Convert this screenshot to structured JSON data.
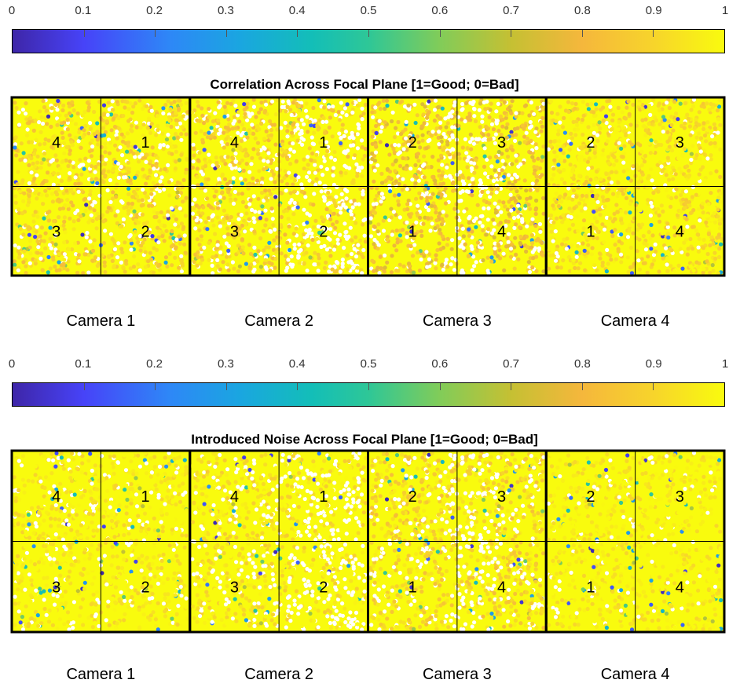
{
  "chart_data": [
    {
      "type": "scatter",
      "title": "Correlation Across Focal Plane [1=Good; 0=Bad]",
      "colorbar": {
        "ticks": [
          "0",
          "0.1",
          "0.2",
          "0.3",
          "0.4",
          "0.5",
          "0.6",
          "0.7",
          "0.8",
          "0.9",
          "1"
        ],
        "range": [
          0,
          1
        ],
        "colormap": "parula"
      },
      "cameras": [
        {
          "label": "Camera 1",
          "ccds": [
            "4",
            "1",
            "3",
            "2"
          ],
          "mean_value": 0.9,
          "white_fraction": 0.2
        },
        {
          "label": "Camera 2",
          "ccds": [
            "4",
            "1",
            "3",
            "2"
          ],
          "mean_value": 0.88,
          "white_fraction": 0.32
        },
        {
          "label": "Camera 3",
          "ccds": [
            "2",
            "3",
            "1",
            "4"
          ],
          "mean_value": 0.82,
          "white_fraction": 0.3
        },
        {
          "label": "Camera 4",
          "ccds": [
            "2",
            "3",
            "1",
            "4"
          ],
          "mean_value": 0.93,
          "white_fraction": 0.1
        }
      ]
    },
    {
      "type": "scatter",
      "title": "Introduced Noise Across Focal Plane [1=Good; 0=Bad]",
      "colorbar": {
        "ticks": [
          "0",
          "0.1",
          "0.2",
          "0.3",
          "0.4",
          "0.5",
          "0.6",
          "0.7",
          "0.8",
          "0.9",
          "1"
        ],
        "range": [
          0,
          1
        ],
        "colormap": "parula"
      },
      "cameras": [
        {
          "label": "Camera 1",
          "ccds": [
            "4",
            "1",
            "3",
            "2"
          ],
          "mean_value": 0.97,
          "white_fraction": 0.2
        },
        {
          "label": "Camera 2",
          "ccds": [
            "4",
            "1",
            "3",
            "2"
          ],
          "mean_value": 0.95,
          "white_fraction": 0.3
        },
        {
          "label": "Camera 3",
          "ccds": [
            "2",
            "3",
            "1",
            "4"
          ],
          "mean_value": 0.9,
          "white_fraction": 0.3
        },
        {
          "label": "Camera 4",
          "ccds": [
            "2",
            "3",
            "1",
            "4"
          ],
          "mean_value": 0.98,
          "white_fraction": 0.1
        }
      ]
    }
  ]
}
